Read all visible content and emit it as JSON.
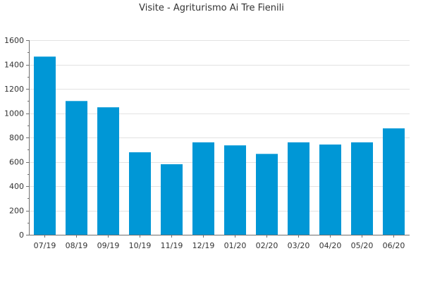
{
  "chart_data": {
    "type": "bar",
    "title": "Visite - Agriturismo Ai Tre Fienili",
    "xlabel": "",
    "ylabel": "",
    "categories": [
      "07/19",
      "08/19",
      "09/19",
      "10/19",
      "11/19",
      "12/19",
      "01/20",
      "02/20",
      "03/20",
      "04/20",
      "05/20",
      "06/20"
    ],
    "values": [
      1465,
      1100,
      1048,
      678,
      580,
      760,
      735,
      665,
      760,
      742,
      760,
      875
    ],
    "ylim": [
      0,
      1600
    ],
    "yticks": [
      0,
      200,
      400,
      600,
      800,
      1000,
      1200,
      1400,
      1600
    ],
    "grid": true,
    "legend": "none",
    "colors": {
      "bar": "#0097d6",
      "grid": "#e2e2e2",
      "axis": "#6f6f6f",
      "text": "#333333"
    }
  }
}
